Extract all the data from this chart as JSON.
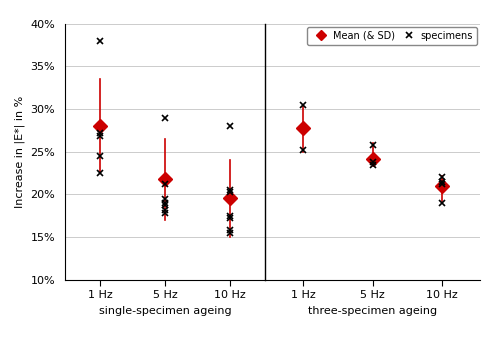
{
  "ylabel": "Increase in |E*| in %",
  "yticks": [
    10,
    15,
    20,
    25,
    30,
    35,
    40
  ],
  "ylim": [
    10,
    40
  ],
  "ytick_labels": [
    "10%",
    "15%",
    "20%",
    "25%",
    "30%",
    "35%",
    "40%"
  ],
  "xlabel_left": "single-specimen ageing",
  "xlabel_right": "three-specimen ageing",
  "x_labels": [
    "1 Hz",
    "5 Hz",
    "10 Hz"
  ],
  "legend_mean_label": "Mean (& SD)",
  "legend_spec_label": "specimens",
  "single_means": [
    28.0,
    21.8,
    19.6
  ],
  "single_sd_upper": [
    33.5,
    26.5,
    24.0
  ],
  "single_sd_lower": [
    22.5,
    17.0,
    15.0
  ],
  "single_specimens": [
    [
      38.0,
      27.2,
      26.8,
      24.5,
      22.5
    ],
    [
      29.0,
      21.2,
      19.5,
      19.0,
      18.8,
      18.2,
      17.8
    ],
    [
      28.0,
      20.5,
      20.3,
      17.5,
      17.2,
      15.8,
      15.5
    ]
  ],
  "three_means": [
    27.8,
    24.2,
    21.0
  ],
  "three_sd_upper": [
    30.5,
    26.0,
    22.2
  ],
  "three_sd_lower": [
    25.0,
    23.5,
    19.2
  ],
  "three_specimens": [
    [
      30.5,
      25.2
    ],
    [
      25.8,
      23.8,
      23.5
    ],
    [
      22.0,
      21.5,
      21.2,
      19.0
    ]
  ],
  "mean_color": "#CC0000",
  "line_color": "#CC0000",
  "bg_color": "#FFFFFF",
  "grid_color": "#CCCCCC",
  "figsize": [
    5.0,
    3.41
  ],
  "dpi": 100
}
